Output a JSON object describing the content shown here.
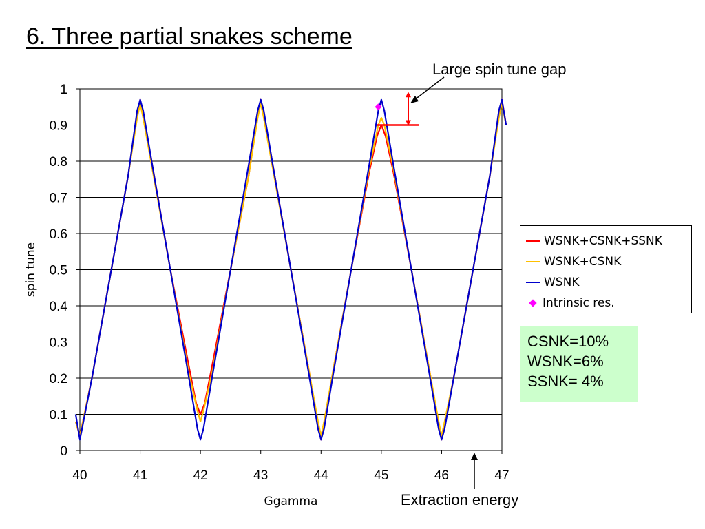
{
  "slide_title": "6. Three partial snakes scheme",
  "annotations": {
    "gap_label": "Large spin tune gap",
    "extraction_label": "Extraction energy"
  },
  "info_box": [
    "CSNK=10%",
    "WSNK=6%",
    "SSNK= 4%"
  ],
  "colors": {
    "wsnk_csnk_ssnk": "#ff0000",
    "wsnk_csnk": "#ffc000",
    "wsnk": "#0000cc",
    "intrinsic": "#ff00ff",
    "annotation": "#ff0000",
    "info_box_bg": "#ccffcc"
  },
  "chart_data": {
    "type": "line",
    "xlabel": "Ggamma",
    "ylabel": "spin tune",
    "xlim": [
      40,
      47
    ],
    "ylim": [
      0,
      1
    ],
    "xticks": [
      "40",
      "41",
      "42",
      "43",
      "44",
      "45",
      "46",
      "47"
    ],
    "yticks": [
      "0",
      "0.1",
      "0.2",
      "0.3",
      "0.4",
      "0.5",
      "0.6",
      "0.7",
      "0.8",
      "0.9",
      "1"
    ],
    "grid": "horizontal",
    "legend_position": "right",
    "series": [
      {
        "name": "WSNK+CSNK+SSNK",
        "x": [
          39.93,
          40.0,
          40.2,
          40.5,
          40.8,
          40.95,
          41.0,
          41.05,
          41.2,
          41.5,
          41.8,
          41.93,
          42.0,
          42.07,
          42.2,
          42.5,
          42.8,
          42.95,
          43.0,
          43.05,
          43.2,
          43.5,
          43.8,
          43.95,
          44.0,
          44.05,
          44.2,
          44.5,
          44.8,
          44.93,
          45.0,
          45.07,
          45.2,
          45.5,
          45.8,
          45.95,
          46.0,
          46.05,
          46.2,
          46.5,
          46.8,
          46.95,
          47.0,
          47.07
        ],
        "y": [
          0.08,
          0.04,
          0.2,
          0.48,
          0.76,
          0.93,
          0.97,
          0.93,
          0.79,
          0.5,
          0.24,
          0.13,
          0.1,
          0.13,
          0.24,
          0.5,
          0.76,
          0.93,
          0.97,
          0.93,
          0.79,
          0.5,
          0.22,
          0.07,
          0.03,
          0.07,
          0.22,
          0.5,
          0.77,
          0.87,
          0.9,
          0.87,
          0.77,
          0.5,
          0.22,
          0.07,
          0.03,
          0.07,
          0.2,
          0.48,
          0.76,
          0.93,
          0.97,
          0.9
        ]
      },
      {
        "name": "WSNK+CSNK",
        "x": [
          39.93,
          40.0,
          40.2,
          40.5,
          40.8,
          40.95,
          41.0,
          41.05,
          41.2,
          41.5,
          41.8,
          41.95,
          42.0,
          42.05,
          42.2,
          42.5,
          42.8,
          42.95,
          43.0,
          43.05,
          43.2,
          43.5,
          43.8,
          43.95,
          44.0,
          44.05,
          44.2,
          44.5,
          44.8,
          44.95,
          45.0,
          45.05,
          45.2,
          45.5,
          45.8,
          45.95,
          46.0,
          46.05,
          46.2,
          46.5,
          46.8,
          46.95,
          47.0,
          47.07
        ],
        "y": [
          0.08,
          0.04,
          0.2,
          0.48,
          0.76,
          0.92,
          0.96,
          0.92,
          0.78,
          0.5,
          0.22,
          0.11,
          0.08,
          0.11,
          0.22,
          0.5,
          0.76,
          0.92,
          0.96,
          0.92,
          0.78,
          0.5,
          0.22,
          0.08,
          0.04,
          0.08,
          0.22,
          0.5,
          0.78,
          0.9,
          0.92,
          0.9,
          0.78,
          0.5,
          0.22,
          0.08,
          0.04,
          0.08,
          0.2,
          0.48,
          0.76,
          0.92,
          0.96,
          0.9
        ]
      },
      {
        "name": "WSNK",
        "x": [
          39.93,
          40.0,
          40.2,
          40.5,
          40.8,
          40.95,
          41.0,
          41.05,
          41.2,
          41.5,
          41.8,
          41.95,
          42.0,
          42.05,
          42.2,
          42.5,
          42.8,
          42.95,
          43.0,
          43.05,
          43.2,
          43.5,
          43.8,
          43.95,
          44.0,
          44.05,
          44.2,
          44.5,
          44.8,
          44.95,
          45.0,
          45.05,
          45.2,
          45.5,
          45.8,
          45.95,
          46.0,
          46.05,
          46.2,
          46.5,
          46.8,
          46.95,
          47.0,
          47.07
        ],
        "y": [
          0.1,
          0.03,
          0.2,
          0.48,
          0.76,
          0.94,
          0.97,
          0.94,
          0.79,
          0.5,
          0.21,
          0.06,
          0.03,
          0.06,
          0.21,
          0.5,
          0.79,
          0.94,
          0.97,
          0.94,
          0.79,
          0.5,
          0.21,
          0.06,
          0.03,
          0.06,
          0.21,
          0.5,
          0.79,
          0.94,
          0.97,
          0.94,
          0.79,
          0.5,
          0.21,
          0.06,
          0.03,
          0.06,
          0.2,
          0.48,
          0.76,
          0.94,
          0.97,
          0.9
        ]
      },
      {
        "name": "Intrinsic res.",
        "marker": "diamond",
        "x": [
          44.95
        ],
        "y": [
          0.95
        ]
      }
    ],
    "gap_marker": {
      "y_low": 0.9,
      "y_high": 0.99
    }
  }
}
